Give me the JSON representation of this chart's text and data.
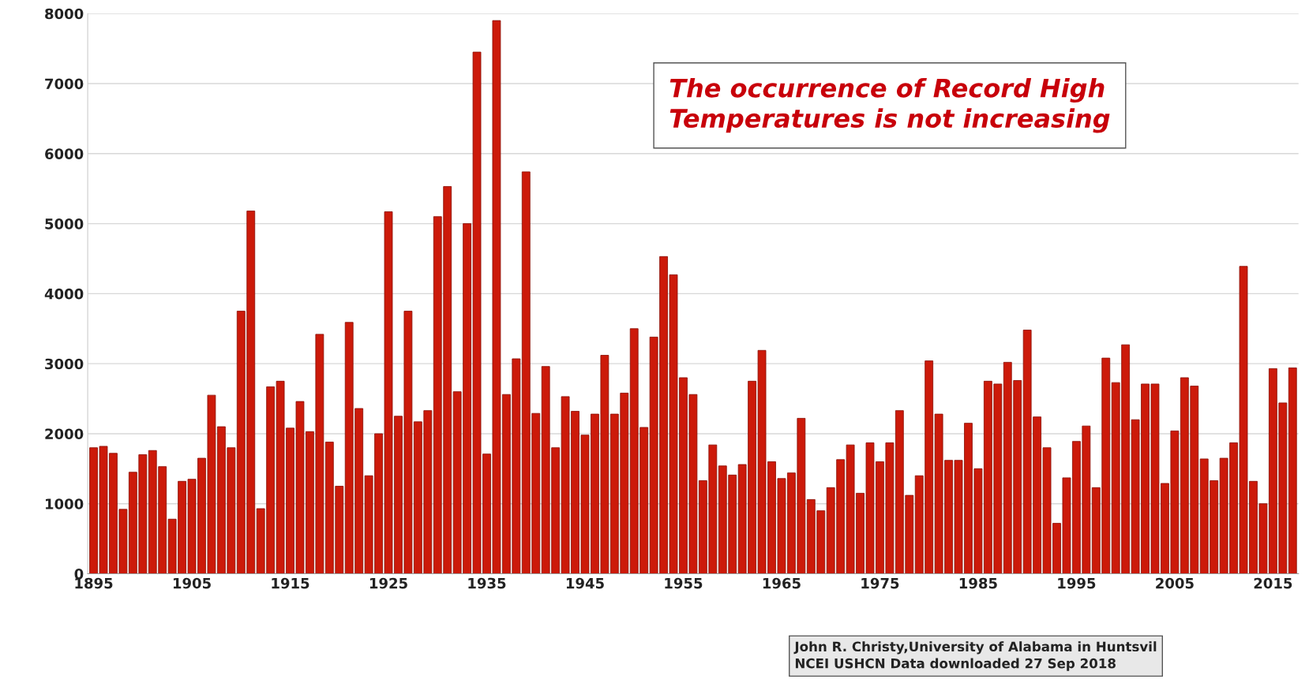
{
  "chart_data": {
    "type": "bar",
    "categories": [
      "1895",
      null,
      null,
      null,
      null,
      null,
      null,
      null,
      null,
      null,
      "1905",
      null,
      null,
      null,
      null,
      null,
      null,
      null,
      null,
      null,
      "1915",
      null,
      null,
      null,
      null,
      null,
      null,
      null,
      null,
      null,
      "1925",
      null,
      null,
      null,
      null,
      null,
      null,
      null,
      null,
      null,
      "1935",
      null,
      null,
      null,
      null,
      null,
      null,
      null,
      null,
      null,
      "1945",
      null,
      null,
      null,
      null,
      null,
      null,
      null,
      null,
      null,
      "1955",
      null,
      null,
      null,
      null,
      null,
      null,
      null,
      null,
      null,
      "1965",
      null,
      null,
      null,
      null,
      null,
      null,
      null,
      null,
      null,
      "1975",
      null,
      null,
      null,
      null,
      null,
      null,
      null,
      null,
      null,
      "1985",
      null,
      null,
      null,
      null,
      null,
      null,
      null,
      null,
      null,
      "1995",
      null,
      null,
      null,
      null,
      null,
      null,
      null,
      null,
      null,
      "2005",
      null,
      null,
      null,
      null,
      null,
      null,
      null,
      null,
      null,
      "2015",
      null,
      null
    ],
    "values": [
      1800,
      1820,
      1720,
      920,
      1450,
      1700,
      1760,
      1530,
      780,
      1320,
      1350,
      1650,
      2550,
      2100,
      1800,
      3750,
      5180,
      930,
      2670,
      2750,
      2080,
      2460,
      2030,
      3420,
      1880,
      1250,
      3590,
      2360,
      1400,
      2000,
      5170,
      2250,
      3750,
      2170,
      2330,
      5100,
      5530,
      2600,
      5000,
      7450,
      1710,
      7900,
      2560,
      3070,
      5740,
      2290,
      2960,
      1800,
      2530,
      2320,
      1980,
      2280,
      3120,
      2280,
      2580,
      3500,
      2090,
      3380,
      4530,
      4270,
      2800,
      2560,
      1330,
      1840,
      1540,
      1410,
      1560,
      2750,
      3190,
      1600,
      1360,
      1440,
      2220,
      1060,
      900,
      1230,
      1630,
      1840,
      1150,
      1870,
      1600,
      1870,
      2330,
      1120,
      1400,
      3040,
      2280,
      1620,
      1620,
      2150,
      1500,
      2750,
      2710,
      3020,
      2760,
      3480,
      2240,
      1800,
      720,
      1370,
      1890,
      2110,
      1230,
      3080,
      2730,
      3270,
      2200,
      2710,
      2710,
      1290,
      2040,
      2800,
      2680,
      1640,
      1330,
      1650,
      1870,
      4390,
      1320,
      1000,
      2930,
      2440,
      2940
    ],
    "color": "#cc1a0a",
    "ylim": [
      0,
      8000
    ],
    "yticks": [
      0,
      1000,
      2000,
      3000,
      4000,
      5000,
      6000,
      7000,
      8000
    ],
    "grid": "y",
    "annotations": [
      "The occurrence of Record High\nTemperatures is not increasing",
      "John R. Christy,University of Alabama in Huntsvil\nNCEI USHCN Data downloaded 27 Sep 2018"
    ]
  }
}
